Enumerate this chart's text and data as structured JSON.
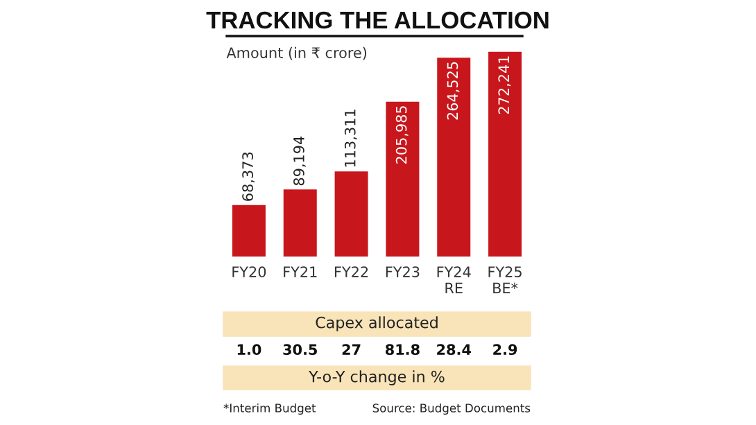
{
  "chart_data": {
    "type": "bar",
    "title": "TRACKING THE ALLOCATION",
    "ylabel": "Amount (in ₹ crore)",
    "categories": [
      "FY20",
      "FY21",
      "FY22",
      "FY23",
      "FY24\nRE",
      "FY25\nBE*"
    ],
    "values": [
      68373,
      89194,
      113311,
      205985,
      264525,
      272241
    ],
    "value_labels": [
      "68,373",
      "89,194",
      "113,311",
      "205,985",
      "264,525",
      "272,241"
    ],
    "color": "#c8161d",
    "grid": false,
    "legend": false,
    "annotations": [
      "Capex allocated",
      "1.0",
      "30.5",
      "27",
      "81.8",
      "28.4",
      "2.9",
      "Y-o-Y change in %",
      "*Interim Budget",
      "Source: Budget Documents"
    ]
  }
}
